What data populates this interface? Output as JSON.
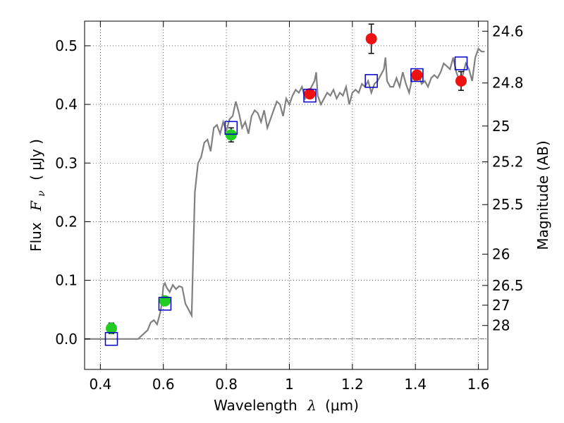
{
  "chart_data": {
    "type": "scatter",
    "xlabel": "Wavelength",
    "xlabel_symbol": "λ",
    "xlabel_unit": "(μm)",
    "ylabel": "Flux",
    "ylabel_symbol": "F",
    "ylabel_subscript": "ν",
    "ylabel_unit": "( μJy )",
    "y2label": "Magnitude (AB)",
    "xlim": [
      0.35,
      1.63
    ],
    "ylim": [
      -0.052,
      0.542
    ],
    "grid": true,
    "x_ticks": [
      {
        "value": 0.4,
        "label": "0.4"
      },
      {
        "value": 0.6,
        "label": "0.6"
      },
      {
        "value": 0.8,
        "label": "0.8"
      },
      {
        "value": 1.0,
        "label": "1"
      },
      {
        "value": 1.2,
        "label": "1.2"
      },
      {
        "value": 1.4,
        "label": "1.4"
      },
      {
        "value": 1.6,
        "label": "1.6"
      }
    ],
    "y_ticks": [
      {
        "value": 0.0,
        "label": "0.0"
      },
      {
        "value": 0.1,
        "label": "0.1"
      },
      {
        "value": 0.2,
        "label": "0.2"
      },
      {
        "value": 0.3,
        "label": "0.3"
      },
      {
        "value": 0.4,
        "label": "0.4"
      },
      {
        "value": 0.5,
        "label": "0.5"
      }
    ],
    "mag_ticks": [
      {
        "mag": 24.6,
        "label": "24.6"
      },
      {
        "mag": 24.8,
        "label": "24.8"
      },
      {
        "mag": 25.0,
        "label": "25"
      },
      {
        "mag": 25.2,
        "label": "25.2"
      },
      {
        "mag": 25.5,
        "label": "25.5"
      },
      {
        "mag": 26.0,
        "label": "26"
      },
      {
        "mag": 26.5,
        "label": "26.5"
      },
      {
        "mag": 27.0,
        "label": "27"
      },
      {
        "mag": 28.0,
        "label": "28"
      }
    ],
    "spectrum": {
      "color": "#808080",
      "x": [
        0.35,
        0.52,
        0.53,
        0.55,
        0.56,
        0.57,
        0.58,
        0.59,
        0.595,
        0.6,
        0.605,
        0.61,
        0.62,
        0.63,
        0.64,
        0.65,
        0.66,
        0.67,
        0.68,
        0.69,
        0.695,
        0.7,
        0.71,
        0.72,
        0.73,
        0.74,
        0.75,
        0.76,
        0.77,
        0.78,
        0.79,
        0.8,
        0.81,
        0.82,
        0.83,
        0.84,
        0.85,
        0.86,
        0.87,
        0.88,
        0.89,
        0.9,
        0.91,
        0.92,
        0.93,
        0.94,
        0.95,
        0.96,
        0.97,
        0.98,
        0.99,
        1.0,
        1.01,
        1.02,
        1.03,
        1.04,
        1.05,
        1.06,
        1.07,
        1.08,
        1.085,
        1.09,
        1.1,
        1.11,
        1.12,
        1.13,
        1.14,
        1.15,
        1.16,
        1.17,
        1.18,
        1.19,
        1.2,
        1.21,
        1.22,
        1.23,
        1.24,
        1.25,
        1.26,
        1.27,
        1.28,
        1.29,
        1.3,
        1.305,
        1.31,
        1.32,
        1.33,
        1.34,
        1.35,
        1.36,
        1.37,
        1.38,
        1.39,
        1.4,
        1.41,
        1.42,
        1.43,
        1.44,
        1.45,
        1.46,
        1.47,
        1.48,
        1.49,
        1.5,
        1.51,
        1.52,
        1.53,
        1.54,
        1.55,
        1.56,
        1.57,
        1.58,
        1.59,
        1.6,
        1.61,
        1.62
      ],
      "y": [
        0.0,
        0.0,
        0.005,
        0.015,
        0.028,
        0.032,
        0.025,
        0.045,
        0.06,
        0.09,
        0.095,
        0.088,
        0.08,
        0.092,
        0.085,
        0.09,
        0.088,
        0.06,
        0.05,
        0.04,
        0.15,
        0.25,
        0.3,
        0.31,
        0.335,
        0.34,
        0.32,
        0.36,
        0.365,
        0.35,
        0.37,
        0.355,
        0.375,
        0.38,
        0.405,
        0.385,
        0.36,
        0.37,
        0.35,
        0.38,
        0.39,
        0.385,
        0.37,
        0.39,
        0.36,
        0.375,
        0.39,
        0.405,
        0.4,
        0.38,
        0.41,
        0.4,
        0.415,
        0.425,
        0.42,
        0.43,
        0.41,
        0.42,
        0.43,
        0.44,
        0.455,
        0.415,
        0.4,
        0.41,
        0.42,
        0.415,
        0.425,
        0.41,
        0.42,
        0.415,
        0.43,
        0.4,
        0.42,
        0.425,
        0.42,
        0.435,
        0.43,
        0.44,
        0.42,
        0.435,
        0.44,
        0.45,
        0.46,
        0.48,
        0.44,
        0.43,
        0.43,
        0.445,
        0.43,
        0.455,
        0.435,
        0.42,
        0.445,
        0.44,
        0.45,
        0.435,
        0.44,
        0.43,
        0.445,
        0.45,
        0.445,
        0.455,
        0.47,
        0.465,
        0.46,
        0.48,
        0.455,
        0.44,
        0.45,
        0.47,
        0.46,
        0.44,
        0.48,
        0.495,
        0.49,
        0.49
      ]
    },
    "model_points": {
      "color": "#0000cc",
      "x": [
        0.435,
        0.605,
        0.815,
        1.065,
        1.26,
        1.405,
        1.545
      ],
      "y": [
        0.0,
        0.06,
        0.36,
        0.415,
        0.44,
        0.45,
        0.47
      ]
    },
    "green_points": {
      "color": "#22cc22",
      "x": [
        0.435,
        0.605,
        0.815
      ],
      "y": [
        0.018,
        0.065,
        0.348
      ],
      "err": [
        0.009,
        0.007,
        0.012
      ]
    },
    "red_points": {
      "color": "#ee1111",
      "x": [
        1.065,
        1.26,
        1.405,
        1.545
      ],
      "y": [
        0.418,
        0.512,
        0.45,
        0.44
      ],
      "err": [
        0.0,
        0.025,
        0.0,
        0.016
      ]
    }
  }
}
